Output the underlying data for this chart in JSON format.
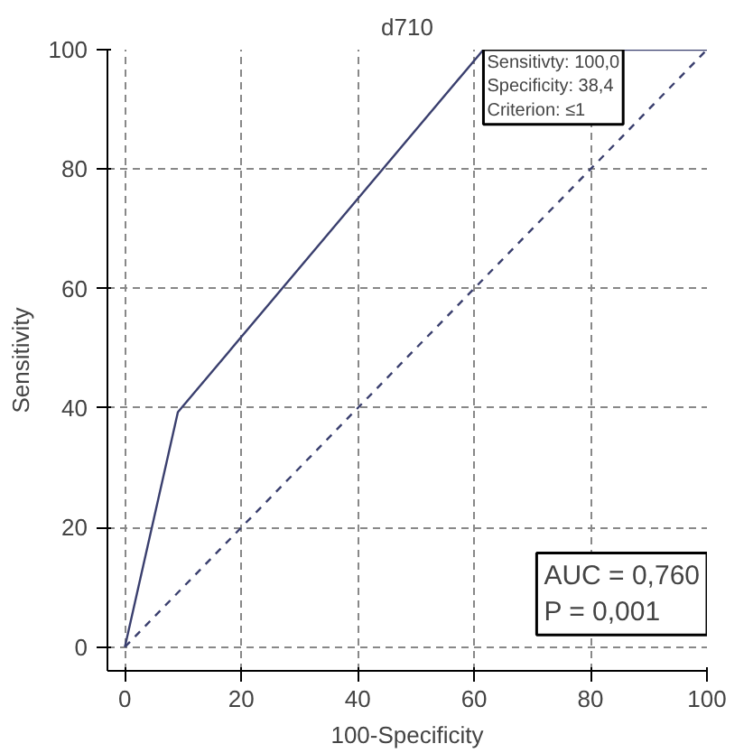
{
  "chart_data": {
    "type": "line",
    "title": "d710",
    "xlabel": "100-Specificity",
    "ylabel": "Sensitivity",
    "xlim": [
      -3,
      100
    ],
    "ylim": [
      -4,
      100
    ],
    "xticks": [
      0,
      20,
      40,
      60,
      80,
      100
    ],
    "yticks": [
      0,
      20,
      40,
      60,
      80,
      100
    ],
    "grid": true,
    "series": [
      {
        "color": "#3a3f6e",
        "x": [
          0,
          9.1,
          61.6,
          100
        ],
        "values": [
          0,
          39.3,
          100,
          100
        ],
        "line_style": "solid"
      },
      {
        "color": "#3a3f6e",
        "x": [
          0,
          100
        ],
        "values": [
          0,
          100
        ],
        "line_style": "dashed"
      }
    ],
    "annotations": [
      {
        "text": "Sensitivty: 100,0\nSpecificity: 38,4\nCriterion: ≤1",
        "x": 61.6,
        "y": 100
      },
      "AUC = 0,760\nP = 0,001"
    ]
  }
}
